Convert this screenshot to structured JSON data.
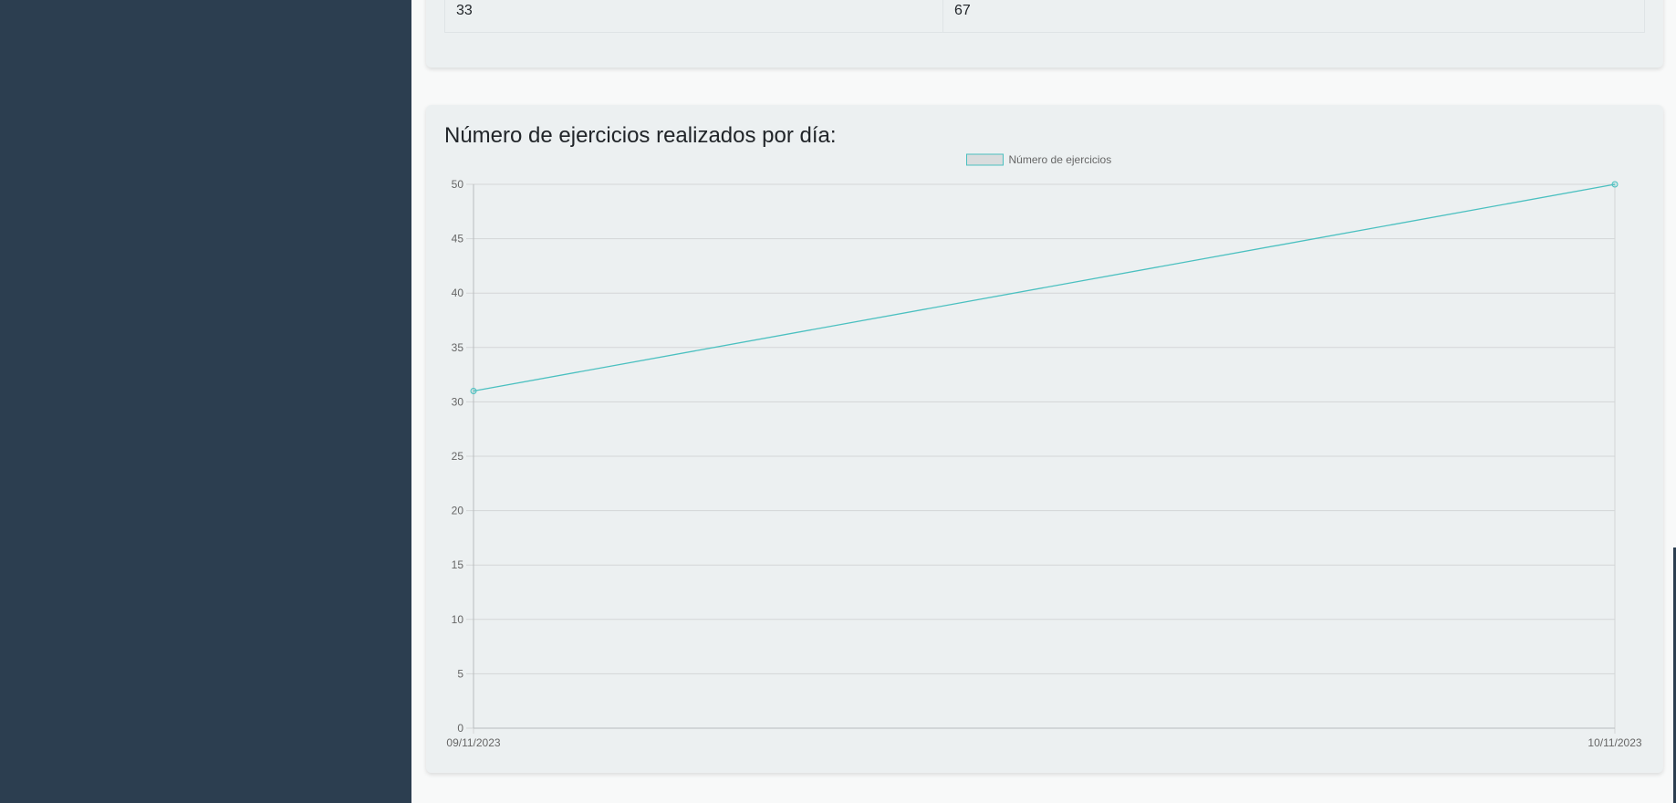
{
  "table": {
    "row": [
      "33",
      "67"
    ]
  },
  "chart_section": {
    "title": "Número de ejercicios realizados por día:"
  },
  "chart_data": {
    "type": "line",
    "x": [
      "09/11/2023",
      "10/11/2023"
    ],
    "series": [
      {
        "name": "Número de ejercicios",
        "values": [
          31,
          50
        ],
        "color": "#4bc0c0"
      }
    ],
    "ylim": [
      0,
      50
    ],
    "yticks": [
      0,
      5,
      10,
      15,
      20,
      25,
      30,
      35,
      40,
      45,
      50
    ],
    "grid": true,
    "legend": "top-center"
  },
  "colors": {
    "sidebar": "#2c3e50",
    "card": "#ecf0f1",
    "line": "#4bc0c0",
    "grid": "#d3d6d7"
  }
}
